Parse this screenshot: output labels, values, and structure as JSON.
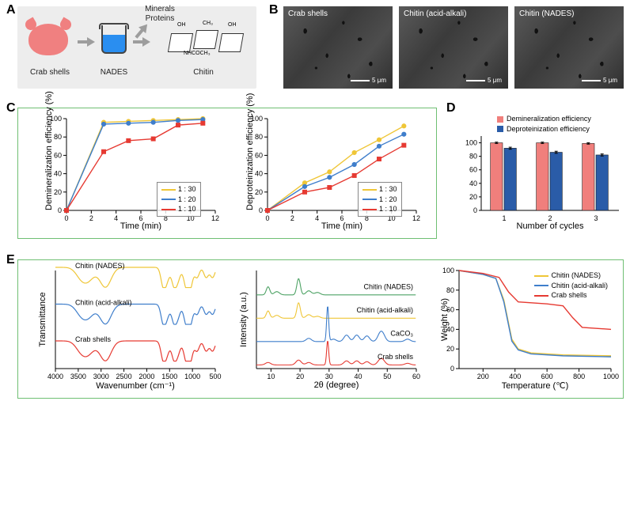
{
  "panelA": {
    "label": "A",
    "caption_crab": "Crab shells",
    "caption_nades": "NADES",
    "caption_chitin": "Chitin",
    "caption_top": "Minerals\nProteins",
    "bg_color": "#ededed"
  },
  "panelB": {
    "label": "B",
    "sem": [
      {
        "title": "Crab shells",
        "scale": "5 μm"
      },
      {
        "title": "Chitin (acid-alkali)",
        "scale": "5 μm"
      },
      {
        "title": "Chitin (NADES)",
        "scale": "5 μm"
      }
    ]
  },
  "panelC": {
    "label": "C",
    "border_color": "#6fbf73",
    "chart1": {
      "ylabel": "Demineralization efficiency (%)",
      "xlabel": "Time (min)",
      "xlim": [
        0,
        12
      ],
      "ylim": [
        0,
        100
      ],
      "xticks": [
        0,
        2,
        4,
        6,
        8,
        10,
        12
      ],
      "yticks": [
        0,
        20,
        40,
        60,
        80,
        100
      ],
      "series": [
        {
          "name": "1 : 30",
          "color": "#efc637",
          "marker": "o",
          "x": [
            0,
            3,
            5,
            7,
            9,
            11
          ],
          "y": [
            0,
            96,
            97,
            98,
            99,
            100
          ]
        },
        {
          "name": "1 : 20",
          "color": "#3f7ecb",
          "marker": "o",
          "x": [
            0,
            3,
            5,
            7,
            9,
            11
          ],
          "y": [
            0,
            94,
            95,
            96,
            98,
            99
          ]
        },
        {
          "name": "1 : 10",
          "color": "#e63a32",
          "marker": "s",
          "x": [
            0,
            3,
            5,
            7,
            9,
            11
          ],
          "y": [
            0,
            64,
            76,
            78,
            93,
            95
          ]
        }
      ]
    },
    "chart2": {
      "ylabel": "Deproteinization efficiency (%)",
      "xlabel": "Time (min)",
      "xlim": [
        0,
        12
      ],
      "ylim": [
        0,
        100
      ],
      "xticks": [
        0,
        2,
        4,
        6,
        8,
        10,
        12
      ],
      "yticks": [
        0,
        20,
        40,
        60,
        80,
        100
      ],
      "series": [
        {
          "name": "1 : 30",
          "color": "#efc637",
          "marker": "o",
          "x": [
            0,
            3,
            5,
            7,
            9,
            11
          ],
          "y": [
            0,
            30,
            42,
            63,
            77,
            92
          ]
        },
        {
          "name": "1 : 20",
          "color": "#3f7ecb",
          "marker": "o",
          "x": [
            0,
            3,
            5,
            7,
            9,
            11
          ],
          "y": [
            0,
            26,
            36,
            50,
            70,
            83
          ]
        },
        {
          "name": "1 : 10",
          "color": "#e63a32",
          "marker": "s",
          "x": [
            0,
            3,
            5,
            7,
            9,
            11
          ],
          "y": [
            0,
            20,
            25,
            38,
            56,
            71
          ]
        }
      ]
    }
  },
  "panelD": {
    "label": "D",
    "ylabel": "",
    "xlabel": "Number of cycles",
    "categories": [
      "1",
      "2",
      "3"
    ],
    "ylim": [
      0,
      110
    ],
    "yticks": [
      0,
      20,
      40,
      60,
      80,
      100
    ],
    "series": [
      {
        "name": "Demineralization efficiency",
        "color": "#f07f7c",
        "values": [
          100,
          100,
          99
        ],
        "err": [
          1,
          1,
          1
        ]
      },
      {
        "name": "Deproteinization efficiency",
        "color": "#2a5ca8",
        "values": [
          92,
          86,
          82
        ],
        "err": [
          1.5,
          1.5,
          1.5
        ]
      }
    ],
    "bar_width": 0.3
  },
  "panelE": {
    "label": "E",
    "ftir": {
      "ylabel": "Transmittance",
      "xlabel": "Wavenumber (cm⁻¹)",
      "xlim": [
        4000,
        500
      ],
      "xticks": [
        4000,
        3500,
        3000,
        2500,
        2000,
        1500,
        1000,
        500
      ],
      "traces": [
        {
          "name": "Chitin (NADES)",
          "color": "#efc637",
          "offset": 2.4
        },
        {
          "name": "Chitin (acid-alkali)",
          "color": "#3f7ecb",
          "offset": 1.2
        },
        {
          "name": "Crab shells",
          "color": "#e63a32",
          "offset": 0
        }
      ],
      "dips": [
        3430,
        3260,
        2930,
        2880,
        1650,
        1620,
        1550,
        1420,
        1380,
        1310,
        1160,
        1110,
        1070,
        1030,
        900,
        700,
        560
      ]
    },
    "xrd": {
      "ylabel": "Intensity (a.u.)",
      "xlabel": "2θ (degree)",
      "xlim": [
        5,
        60
      ],
      "xticks": [
        10,
        20,
        30,
        40,
        50,
        60
      ],
      "traces": [
        {
          "name": "Chitin (NADES)",
          "color": "#4fa366",
          "offset": 3,
          "peaks": [
            [
              9,
              0.5
            ],
            [
              12,
              0.2
            ],
            [
              19.5,
              1.0
            ],
            [
              23,
              0.25
            ],
            [
              26,
              0.15
            ]
          ]
        },
        {
          "name": "Chitin (acid-alkali)",
          "color": "#efc637",
          "offset": 2,
          "peaks": [
            [
              9,
              0.45
            ],
            [
              12,
              0.18
            ],
            [
              19.5,
              0.95
            ],
            [
              23,
              0.22
            ],
            [
              26,
              0.12
            ]
          ]
        },
        {
          "name": "CaCO₃",
          "color": "#3f7ecb",
          "offset": 1,
          "peaks": [
            [
              23,
              0.2
            ],
            [
              29.5,
              2.2
            ],
            [
              31.5,
              0.15
            ],
            [
              36,
              0.4
            ],
            [
              39.5,
              0.4
            ],
            [
              43,
              0.35
            ],
            [
              47.5,
              0.4
            ],
            [
              48.5,
              0.35
            ],
            [
              57,
              0.15
            ]
          ]
        },
        {
          "name": "Crab shells",
          "color": "#e63a32",
          "offset": 0,
          "peaks": [
            [
              9,
              0.15
            ],
            [
              19.5,
              0.3
            ],
            [
              23,
              0.15
            ],
            [
              29.5,
              1.5
            ],
            [
              36,
              0.25
            ],
            [
              39.5,
              0.25
            ],
            [
              43,
              0.2
            ],
            [
              47.5,
              0.25
            ],
            [
              48.5,
              0.22
            ],
            [
              57,
              0.1
            ]
          ]
        }
      ]
    },
    "tga": {
      "ylabel": "Weight (%)",
      "xlabel": "Temperature (℃)",
      "xlim": [
        50,
        1000
      ],
      "ylim": [
        0,
        100
      ],
      "xticks": [
        200,
        400,
        600,
        800,
        1000
      ],
      "yticks": [
        0,
        20,
        40,
        60,
        80,
        100
      ],
      "series": [
        {
          "name": "Chitin (NADES)",
          "color": "#efc637",
          "x": [
            50,
            200,
            280,
            330,
            380,
            420,
            500,
            700,
            1000
          ],
          "y": [
            100,
            96,
            92,
            70,
            30,
            20,
            16,
            14,
            13
          ]
        },
        {
          "name": "Chitin (acid-alkali)",
          "color": "#3f7ecb",
          "x": [
            50,
            200,
            280,
            330,
            380,
            420,
            500,
            700,
            1000
          ],
          "y": [
            100,
            96,
            92,
            68,
            28,
            19,
            15,
            13,
            12
          ]
        },
        {
          "name": "Crab shells",
          "color": "#e63a32",
          "x": [
            50,
            200,
            300,
            360,
            420,
            600,
            700,
            760,
            820,
            1000
          ],
          "y": [
            100,
            97,
            93,
            78,
            68,
            66,
            64,
            52,
            42,
            40
          ]
        }
      ]
    }
  }
}
